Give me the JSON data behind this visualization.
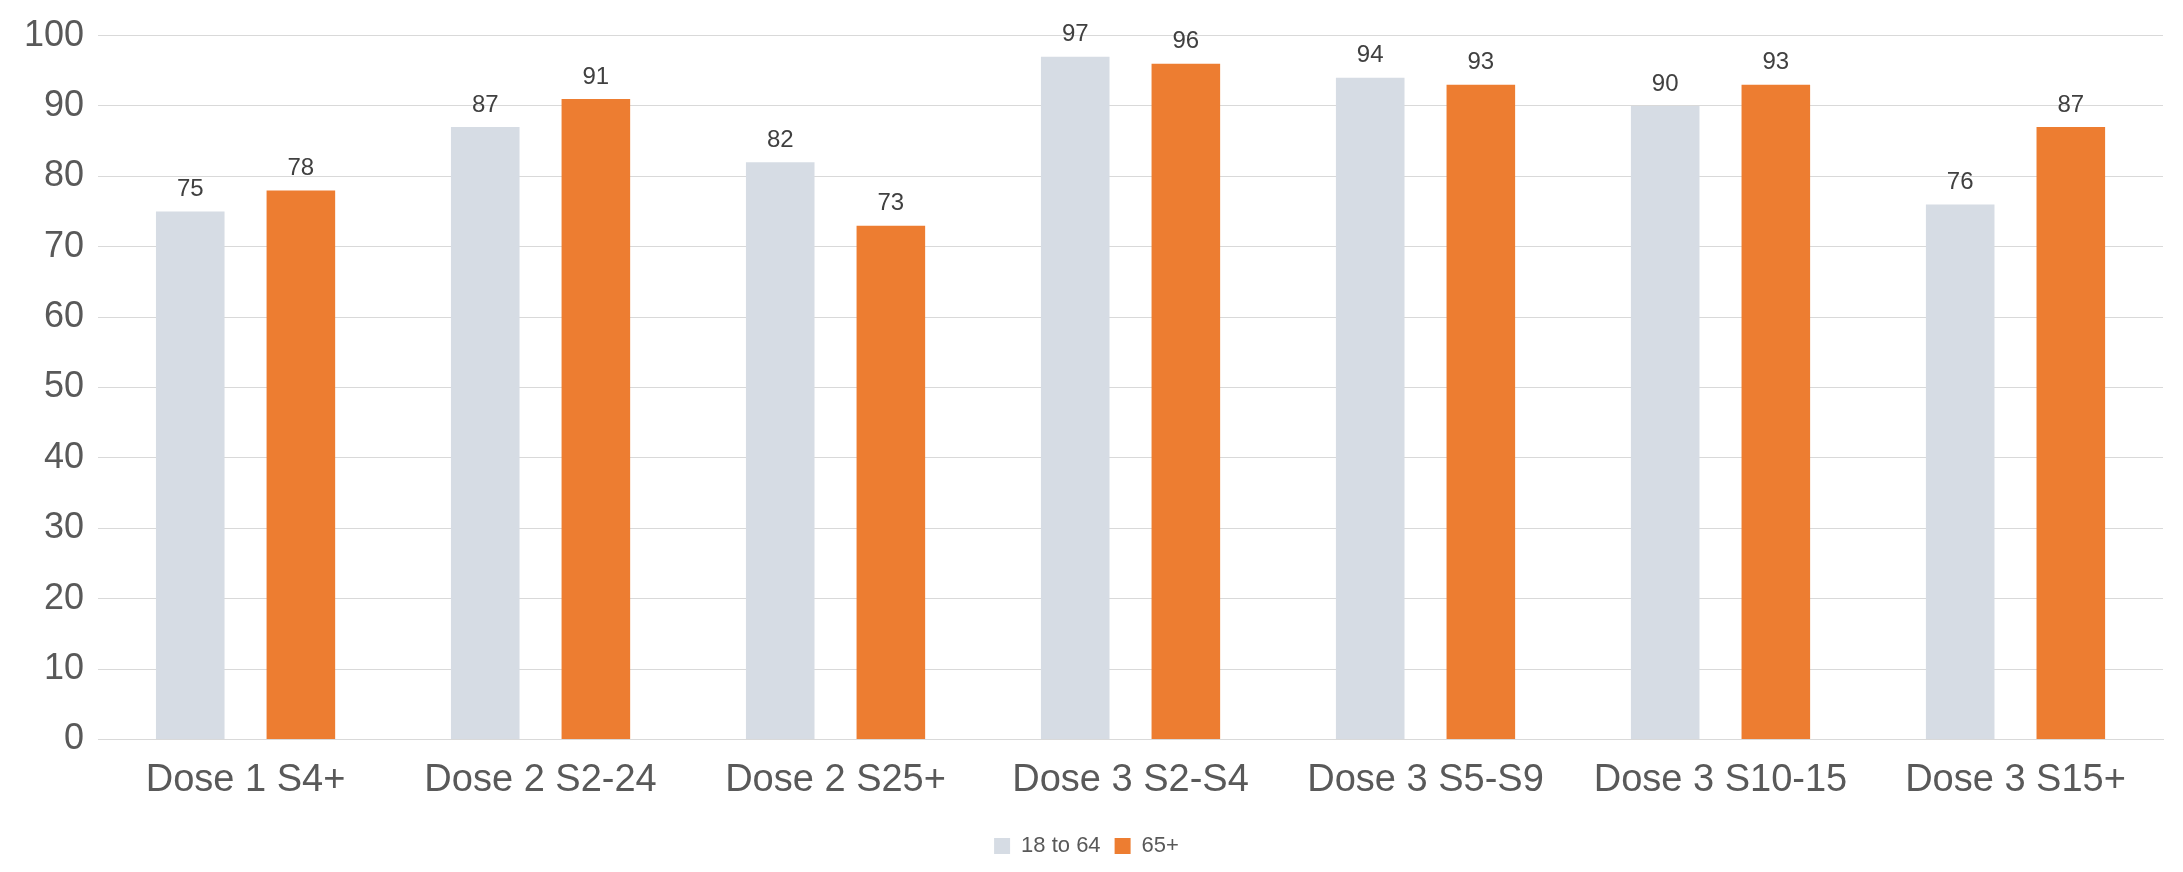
{
  "chart_data": {
    "type": "bar",
    "categories": [
      "Dose 1 S4+",
      "Dose 2 S2-24",
      "Dose 2 S25+",
      "Dose 3 S2-S4",
      "Dose 3 S5-S9",
      "Dose 3 S10-15",
      "Dose 3 S15+"
    ],
    "series": [
      {
        "name": "18 to 64",
        "color": "#d6dce4",
        "values": [
          75,
          87,
          82,
          97,
          94,
          90,
          76
        ]
      },
      {
        "name": "65+",
        "color": "#ed7d31",
        "values": [
          78,
          91,
          73,
          96,
          93,
          93,
          87
        ]
      }
    ],
    "ylim": [
      0,
      100
    ],
    "yticks": [
      0,
      10,
      20,
      30,
      40,
      50,
      60,
      70,
      80,
      90,
      100
    ],
    "grid": "y",
    "legend": "bottom",
    "data_labels": true
  }
}
